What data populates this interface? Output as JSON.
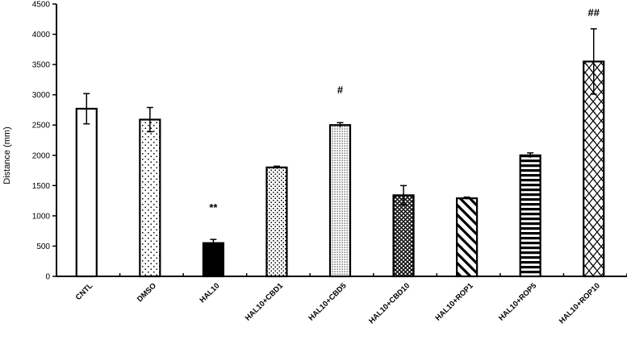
{
  "chart_data": {
    "type": "bar",
    "title": "",
    "xlabel": "",
    "ylabel": "Distance (mm)",
    "ylim": [
      0,
      4500
    ],
    "yticks": [
      0,
      500,
      1000,
      1500,
      2000,
      2500,
      3000,
      3500,
      4000,
      4500
    ],
    "grid": false,
    "legend": null,
    "categories": [
      "CNTL",
      "DMSO",
      "HAL10",
      "HAL10+CBD1",
      "HAL10+CBD5",
      "HAL10+CBD10",
      "HAL10+ROP1",
      "HAL10+ROP5",
      "HAL10+ROP10"
    ],
    "values": [
      2770,
      2590,
      550,
      1800,
      2500,
      1340,
      1290,
      2000,
      3550
    ],
    "errors": [
      250,
      200,
      60,
      20,
      40,
      160,
      20,
      40,
      540
    ],
    "patterns": [
      "empty",
      "sparse-dots",
      "solid-black",
      "medium-dots",
      "dense-dots",
      "crosshatch",
      "diagonal-stripes",
      "horizontal-stripes",
      "diamond-crosshatch"
    ],
    "annotations": [
      {
        "category": "HAL10",
        "text": "**"
      },
      {
        "category": "HAL10+CBD5",
        "text": "#"
      },
      {
        "category": "HAL10+ROP10",
        "text": "##"
      }
    ]
  }
}
